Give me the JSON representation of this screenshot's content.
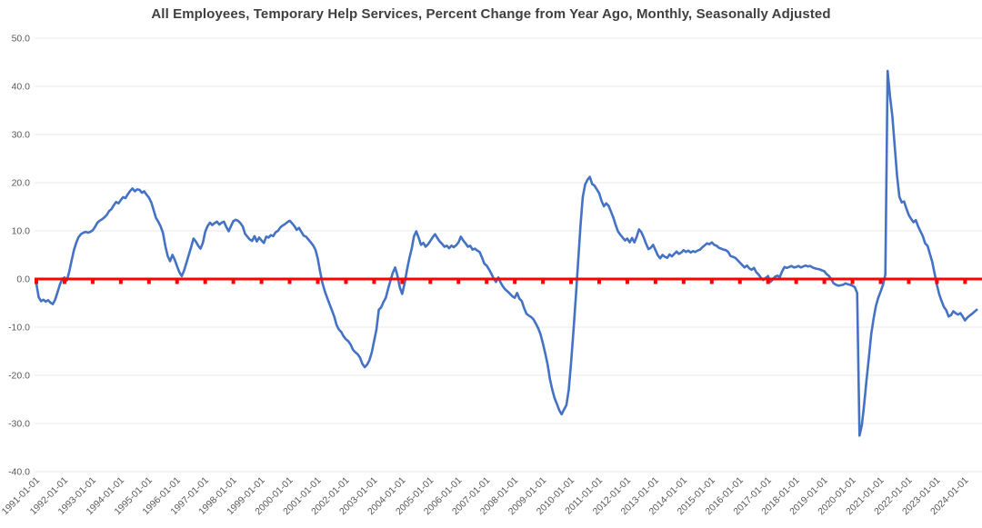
{
  "chart_data": {
    "type": "line",
    "title": "All Employees, Temporary Help Services, Percent Change from Year Ago, Monthly, Seasonally Adjusted",
    "legend": "none",
    "grid": "horizontal",
    "colors": {
      "background": "#FFFFFF",
      "line": "#4472C4",
      "zero_line": "#FF0000",
      "grid": "#E8E8E8",
      "axis_label": "#595959",
      "title": "#3F3F3F"
    },
    "y_axis": {
      "min": -40,
      "max": 50,
      "tick_step": 10,
      "tick_format": "one-decimal",
      "ticks": [
        {
          "label": "50.0",
          "value": 50
        },
        {
          "label": "40.0",
          "value": 40
        },
        {
          "label": "30.0",
          "value": 30
        },
        {
          "label": "20.0",
          "value": 20
        },
        {
          "label": "10.0",
          "value": 10
        },
        {
          "label": "0.0",
          "value": 0
        },
        {
          "label": "-10.0",
          "value": -10
        },
        {
          "label": "-20.0",
          "value": -20
        },
        {
          "label": "-30.0",
          "value": -30
        },
        {
          "label": "-40.0",
          "value": -40
        }
      ]
    },
    "x_axis": {
      "rotation": -45,
      "tick_labels": [
        "1991-01-01",
        "1992-01-01",
        "1993-01-01",
        "1994-01-01",
        "1995-01-01",
        "1996-01-01",
        "1997-01-01",
        "1998-01-01",
        "1999-01-01",
        "2000-01-01",
        "2001-01-01",
        "2002-01-01",
        "2003-01-01",
        "2004-01-01",
        "2005-01-01",
        "2006-01-01",
        "2007-01-01",
        "2008-01-01",
        "2009-01-01",
        "2010-01-01",
        "2011-01-01",
        "2012-01-01",
        "2013-01-01",
        "2014-01-01",
        "2015-01-01",
        "2016-01-01",
        "2017-01-01",
        "2018-01-01",
        "2019-01-01",
        "2020-01-01",
        "2021-01-01",
        "2022-01-01",
        "2023-01-01",
        "2024-01-01"
      ]
    },
    "zero_line": {
      "value": 0,
      "color": "#FF0000",
      "marker": "square-below-line-at-each-year"
    },
    "series": [
      {
        "name": "All Employees, Temporary Help Services, Percent Change from Year Ago",
        "color": "#4472C4",
        "unit": "percent change from year ago",
        "frequency": "monthly",
        "start": "1991-01",
        "end": "2024-06",
        "values": [
          -1.0,
          -3.8,
          -4.6,
          -4.3,
          -4.7,
          -4.4,
          -4.9,
          -5.2,
          -4.3,
          -2.8,
          -1.2,
          0.0,
          0.3,
          -0.3,
          1.5,
          3.8,
          6.0,
          7.5,
          8.7,
          9.3,
          9.6,
          9.8,
          9.6,
          9.8,
          10.1,
          10.8,
          11.7,
          12.1,
          12.4,
          12.8,
          13.3,
          14.1,
          14.5,
          15.3,
          16.0,
          15.7,
          16.4,
          17.0,
          16.8,
          17.6,
          18.3,
          18.8,
          18.2,
          18.6,
          18.5,
          17.9,
          18.2,
          17.5,
          16.9,
          15.9,
          14.3,
          12.7,
          11.9,
          10.9,
          9.5,
          6.8,
          4.8,
          3.7,
          5.0,
          4.0,
          2.6,
          1.4,
          0.6,
          1.8,
          3.4,
          5.0,
          6.6,
          8.4,
          7.8,
          6.9,
          6.3,
          7.5,
          9.8,
          11.0,
          11.7,
          11.2,
          11.6,
          11.9,
          11.3,
          11.7,
          11.9,
          10.8,
          9.9,
          11.0,
          12.0,
          12.3,
          12.1,
          11.6,
          10.9,
          9.4,
          8.8,
          8.2,
          7.9,
          8.9,
          7.8,
          8.6,
          8.0,
          7.5,
          8.8,
          8.6,
          9.1,
          8.9,
          9.7,
          10.0,
          10.7,
          11.1,
          11.4,
          11.8,
          12.1,
          11.6,
          11.0,
          10.2,
          10.6,
          9.8,
          9.0,
          8.8,
          8.2,
          7.6,
          7.0,
          6.1,
          4.2,
          1.5,
          -0.9,
          -2.5,
          -3.9,
          -5.2,
          -6.5,
          -7.8,
          -9.5,
          -10.5,
          -11.0,
          -11.9,
          -12.5,
          -12.9,
          -13.6,
          -14.7,
          -15.2,
          -15.6,
          -16.3,
          -17.6,
          -18.3,
          -17.8,
          -16.9,
          -15.3,
          -12.9,
          -10.5,
          -6.4,
          -5.9,
          -4.8,
          -3.9,
          -2.0,
          -0.3,
          1.3,
          2.4,
          0.6,
          -1.8,
          -3.1,
          -1.0,
          1.8,
          4.2,
          6.2,
          8.8,
          9.9,
          8.6,
          7.1,
          7.5,
          6.7,
          7.2,
          7.9,
          8.7,
          9.3,
          8.5,
          7.8,
          7.3,
          6.7,
          6.9,
          6.4,
          6.9,
          6.6,
          7.0,
          7.6,
          8.8,
          8.0,
          7.4,
          6.7,
          6.9,
          6.1,
          6.3,
          5.9,
          5.6,
          4.5,
          3.2,
          2.8,
          2.0,
          1.1,
          0.1,
          -0.6,
          0.3,
          -0.8,
          -1.6,
          -2.2,
          -2.6,
          -3.1,
          -3.6,
          -3.9,
          -2.9,
          -4.1,
          -4.6,
          -6.1,
          -7.2,
          -7.6,
          -7.9,
          -8.4,
          -9.3,
          -10.2,
          -11.5,
          -13.4,
          -15.5,
          -17.8,
          -20.8,
          -23.0,
          -24.8,
          -26.0,
          -27.3,
          -28.1,
          -27.1,
          -26.2,
          -23.0,
          -17.5,
          -11.0,
          -4.0,
          3.5,
          11.0,
          17.0,
          19.6,
          20.6,
          21.2,
          19.7,
          19.4,
          18.6,
          17.8,
          16.2,
          15.1,
          15.7,
          15.2,
          14.0,
          12.8,
          11.2,
          9.9,
          9.2,
          8.6,
          8.0,
          8.4,
          7.6,
          8.5,
          7.6,
          8.8,
          10.3,
          9.7,
          8.6,
          7.3,
          6.2,
          6.5,
          7.1,
          6.0,
          4.9,
          4.3,
          5.0,
          4.6,
          4.4,
          5.1,
          4.7,
          5.2,
          5.7,
          5.2,
          5.5,
          6.0,
          5.6,
          5.9,
          5.5,
          5.8,
          5.6,
          5.9,
          6.1,
          6.6,
          7.0,
          7.4,
          7.2,
          7.6,
          7.1,
          6.9,
          6.5,
          6.3,
          6.1,
          6.0,
          5.6,
          4.8,
          4.6,
          4.4,
          3.9,
          3.4,
          2.9,
          2.4,
          2.8,
          2.2,
          1.9,
          2.3,
          1.4,
          0.9,
          0.2,
          -0.2,
          0.2,
          0.6,
          -0.6,
          -0.1,
          0.5,
          0.7,
          0.4,
          1.6,
          2.5,
          2.3,
          2.5,
          2.7,
          2.4,
          2.5,
          2.7,
          2.4,
          2.6,
          2.8,
          2.6,
          2.7,
          2.4,
          2.2,
          2.1,
          2.0,
          1.8,
          1.6,
          1.0,
          0.6,
          -0.1,
          -0.9,
          -1.2,
          -1.4,
          -1.3,
          -1.2,
          -0.9,
          -1.1,
          -1.2,
          -1.4,
          -1.7,
          -2.9,
          -32.5,
          -30.3,
          -26.0,
          -21.0,
          -16.3,
          -11.4,
          -8.2,
          -5.6,
          -3.9,
          -2.6,
          -1.2,
          0.9,
          43.2,
          38.0,
          33.8,
          27.6,
          21.4,
          17.1,
          15.9,
          16.1,
          14.6,
          13.3,
          12.5,
          11.8,
          12.2,
          10.9,
          9.9,
          8.9,
          7.4,
          6.9,
          5.2,
          3.6,
          1.2,
          -1.2,
          -3.2,
          -4.6,
          -5.8,
          -6.5,
          -7.8,
          -7.5,
          -6.7,
          -7.1,
          -7.4,
          -7.1,
          -7.8,
          -8.6,
          -8.0,
          -7.6,
          -7.2,
          -6.8,
          -6.4
        ]
      }
    ]
  }
}
